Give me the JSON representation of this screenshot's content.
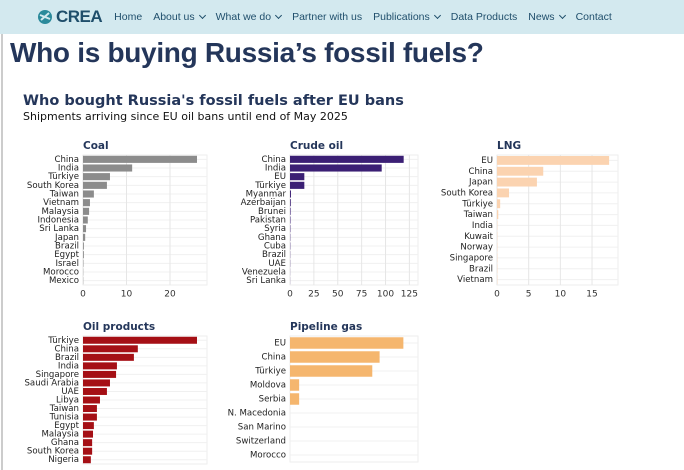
{
  "nav": {
    "logo": "CREA",
    "items": [
      "Home",
      "About us",
      "What we do",
      "Partner with us",
      "Publications",
      "Data Products",
      "News",
      "Contact"
    ]
  },
  "page_title": "Who is buying Russia’s fossil fuels?",
  "figure": {
    "title": "Who bought Russia's fossil fuels after EU bans",
    "subtitle": "Shipments arriving since EU oil bans until end of May 2025"
  },
  "chart_data": [
    {
      "type": "bar",
      "orientation": "horizontal",
      "title": "Coal",
      "color": "#8c8c8c",
      "categories": [
        "China",
        "India",
        "Türkiye",
        "South Korea",
        "Taiwan",
        "Vietnam",
        "Malaysia",
        "Indonesia",
        "Sri Lanka",
        "Japan",
        "Brazil",
        "Egypt",
        "Israel",
        "Morocco",
        "Mexico"
      ],
      "values": [
        26.2,
        11.3,
        6.2,
        5.5,
        2.5,
        1.6,
        1.4,
        1.1,
        0.7,
        0.5,
        0.2,
        0.2,
        0.1,
        0.05,
        0.05
      ],
      "xlim": [
        0,
        28.5
      ],
      "xticks": [
        0,
        10,
        20
      ]
    },
    {
      "type": "bar",
      "orientation": "horizontal",
      "title": "Crude oil",
      "color": "#3b1f74",
      "categories": [
        "China",
        "India",
        "EU",
        "Türkiye",
        "Myanmar",
        "Azerbaijan",
        "Brunei",
        "Pakistan",
        "Syria",
        "Ghana",
        "Cuba",
        "Brazil",
        "UAE",
        "Venezuela",
        "Sri Lanka"
      ],
      "values": [
        119,
        96,
        15,
        15,
        1,
        0.8,
        0.6,
        0.5,
        0.4,
        0.3,
        0.3,
        0.2,
        0.2,
        0.1,
        0.1
      ],
      "xlim": [
        0,
        134
      ],
      "xticks": [
        0,
        25,
        50,
        75,
        100,
        125
      ]
    },
    {
      "type": "bar",
      "orientation": "horizontal",
      "title": "LNG",
      "color": "#fbd3b0",
      "categories": [
        "EU",
        "China",
        "Japan",
        "South Korea",
        "Türkiye",
        "Taiwan",
        "India",
        "Kuwait",
        "Norway",
        "Singapore",
        "Brazil",
        "Vietnam"
      ],
      "values": [
        17.7,
        7.3,
        6.3,
        1.9,
        0.5,
        0.2,
        0.05,
        0.05,
        0.05,
        0.05,
        0.05,
        0.05
      ],
      "xlim": [
        0,
        19.1
      ],
      "xticks": [
        0,
        5,
        10,
        15
      ]
    },
    {
      "type": "bar",
      "orientation": "horizontal",
      "title": "Oil products",
      "color": "#a50f15",
      "categories": [
        "Türkiye",
        "China",
        "Brazil",
        "India",
        "Singapore",
        "Saudi Arabia",
        "UAE",
        "Libya",
        "Taiwan",
        "Tunisia",
        "Egypt",
        "Malaysia",
        "Ghana",
        "South Korea",
        "Nigeria"
      ],
      "values": [
        26.2,
        12.6,
        11.7,
        7.8,
        7.6,
        6.2,
        5.5,
        3.9,
        3.2,
        3.2,
        2.5,
        2.3,
        2.1,
        2.1,
        1.8
      ],
      "xlim": [
        0,
        28.5
      ]
    },
    {
      "type": "bar",
      "orientation": "horizontal",
      "title": "Pipeline gas",
      "color": "#f5b66e",
      "categories": [
        "EU",
        "China",
        "Türkiye",
        "Moldova",
        "Serbia",
        "N. Macedonia",
        "San Marino",
        "Switzerland",
        "Morocco"
      ],
      "values": [
        12.4,
        9.8,
        9.0,
        1.0,
        1.0,
        0,
        0,
        0,
        0
      ],
      "xlim": [
        0,
        14
      ]
    }
  ]
}
